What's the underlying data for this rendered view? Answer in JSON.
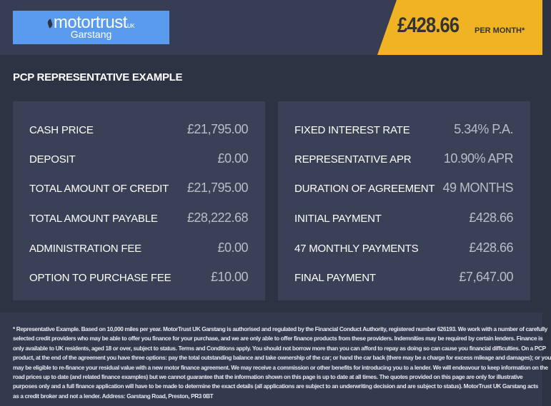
{
  "header": {
    "logo": {
      "brand": "motortrust",
      "suffix": "UK",
      "location": "Garstang"
    },
    "price": "£428.66",
    "price_suffix": "PER MONTH*",
    "accent_color": "#f0b323"
  },
  "title": "PCP REPRESENTATIVE EXAMPLE",
  "left_panel": [
    {
      "label": "CASH PRICE",
      "value": "£21,795.00"
    },
    {
      "label": "DEPOSIT",
      "value": "£0.00"
    },
    {
      "label": "TOTAL AMOUNT OF CREDIT",
      "value": "£21,795.00"
    },
    {
      "label": "TOTAL AMOUNT PAYABLE",
      "value": "£28,222.68"
    },
    {
      "label": "ADMINISTRATION FEE",
      "value": "£0.00"
    },
    {
      "label": "OPTION TO PURCHASE FEE",
      "value": "£10.00"
    }
  ],
  "right_panel": [
    {
      "label": "FIXED INTEREST RATE",
      "value": "5.34% P.A."
    },
    {
      "label": "REPRESENTATIVE APR",
      "value": "10.90% APR"
    },
    {
      "label": "DURATION OF AGREEMENT",
      "value": "49 MONTHS"
    },
    {
      "label": "INITIAL PAYMENT",
      "value": "£428.66"
    },
    {
      "label": "47 MONTHLY PAYMENTS",
      "value": "£428.66"
    },
    {
      "label": "FINAL PAYMENT",
      "value": "£7,647.00"
    }
  ],
  "footer_lines": [
    "* Representative Example. Based on 10,000 miles per year. MotorTrust UK Garstang is authorised and regulated by the Financial Conduct Authority, registered number 626193. We work with a number of carefully",
    "selected credit providers who may be able to offer you finance for your purchase, and we are only able to offer finance products from these providers. Indemnities may be required by certain lenders. Finance is",
    "only available to UK residents, aged 18 or over, subject to status. Terms and Conditions apply. You should not borrow more than you can afford to repay as doing so can cause you financial difficulties. On a PCP",
    "product, at the end of the agreement you have three options: pay the total outstanding balance and take ownership of the car; or hand the car back (there may be a charge for excess mileage and damages); or you",
    "may be eligible to re-finance your residual value with a new motor finance agreement. We may receive a commission or other benefits for introducing you to a lender. We will endeavour to keep information on the",
    "road prices up to date (and related finance examples) but we cannot guarantee that the information shown on this page is up to date at all times. The quotes provided on this page are only for illustrative",
    "purposes only and a full finance application will have to be made to determine the exact details (all applications are subject to an underwriting decision and are subject to status). MotorTrust UK Garstang acts",
    "as a credit broker and not a lender. Address: Garstang Road, Preston, PR3 0BT"
  ]
}
